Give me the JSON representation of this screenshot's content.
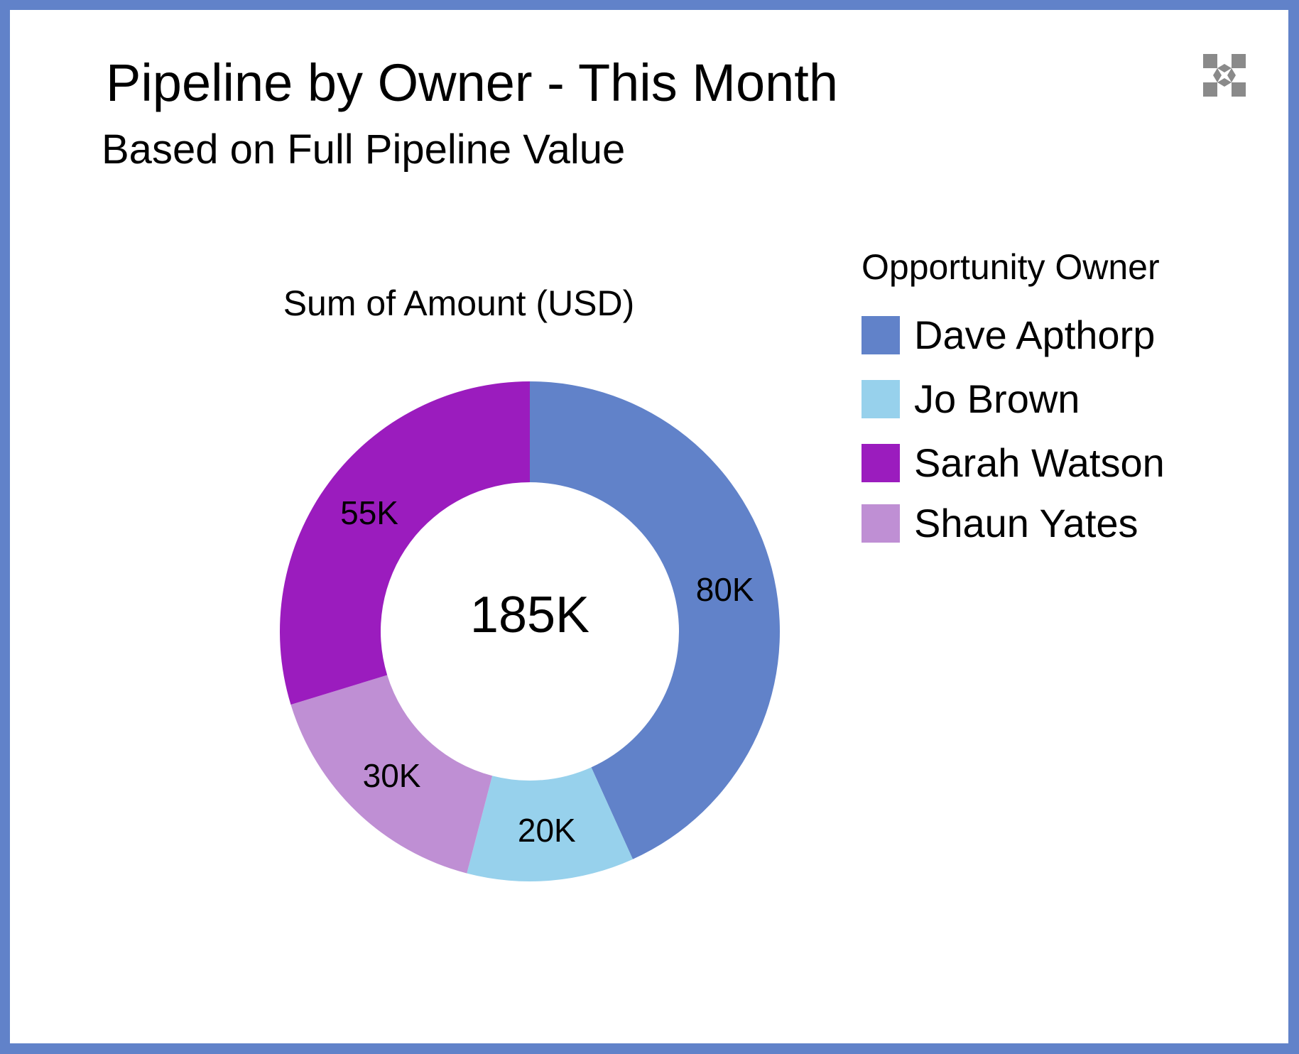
{
  "header": {
    "title": "Pipeline by Owner - This Month",
    "subtitle": "Based on Full Pipeline Value",
    "expand_icon": "expand-arrows-icon"
  },
  "legend": {
    "title": "Opportunity Owner",
    "placement": "right"
  },
  "chart_data": {
    "type": "pie",
    "variant": "donut",
    "measure_label": "Sum of Amount (USD)",
    "total_label": "185K",
    "total": 185000,
    "series": [
      {
        "name": "Dave Apthorp",
        "value": 80000,
        "label": "80K",
        "color": "#6182c9"
      },
      {
        "name": "Jo Brown",
        "value": 20000,
        "label": "20K",
        "color": "#97d1ec"
      },
      {
        "name": "Shaun Yates",
        "value": 30000,
        "label": "30K",
        "color": "#bf8fd4"
      },
      {
        "name": "Sarah Watson",
        "value": 55000,
        "label": "55K",
        "color": "#9b1cbe"
      }
    ],
    "legend_order": [
      "Dave Apthorp",
      "Jo Brown",
      "Sarah Watson",
      "Shaun Yates"
    ],
    "legend": "right"
  }
}
